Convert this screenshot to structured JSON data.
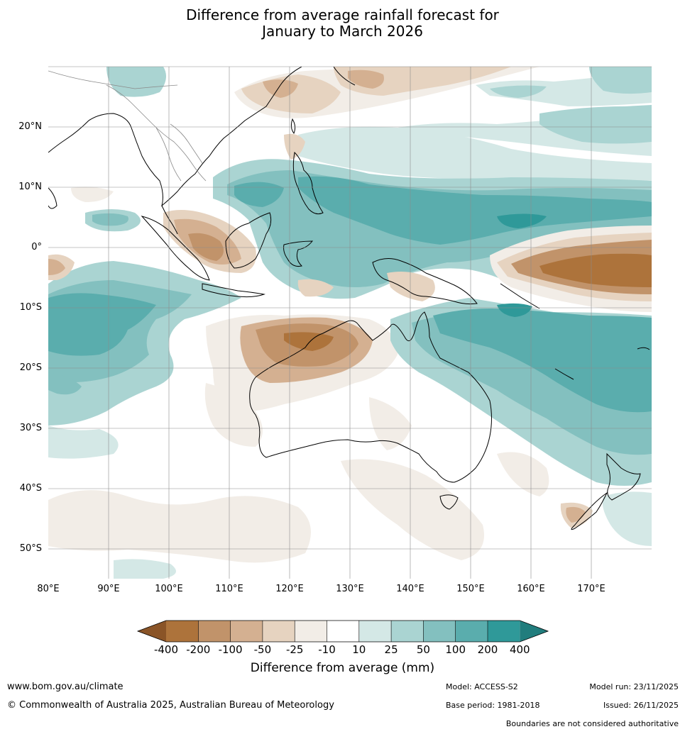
{
  "title": {
    "line1": "Difference from average rainfall forecast for",
    "line2": "January to March 2026"
  },
  "axes": {
    "lat_labels": [
      "20°N",
      "10°N",
      "0°",
      "10°S",
      "20°S",
      "30°S",
      "40°S",
      "50°S"
    ],
    "lat_values": [
      20,
      10,
      0,
      -10,
      -20,
      -30,
      -40,
      -50
    ],
    "lon_labels": [
      "80°E",
      "90°E",
      "100°E",
      "110°E",
      "120°E",
      "130°E",
      "140°E",
      "150°E",
      "160°E",
      "170°E"
    ],
    "lon_values": [
      80,
      90,
      100,
      110,
      120,
      130,
      140,
      150,
      160,
      170
    ],
    "lon_range": [
      80,
      180
    ],
    "lat_range": [
      -55,
      30
    ]
  },
  "colorbar": {
    "title": "Difference from average (mm)",
    "labels": [
      "-400",
      "-200",
      "-100",
      "-50",
      "-25",
      "-10",
      "10",
      "25",
      "50",
      "100",
      "200",
      "400"
    ],
    "colors": {
      "lt_-400": "#8a5427",
      "c1": "#ad733b",
      "c2": "#c1936a",
      "c3": "#d4b091",
      "c4": "#e6d3c0",
      "c5": "#f2ede7",
      "c6": "#ffffff",
      "c7": "#d4e8e6",
      "c8": "#aad4d2",
      "c9": "#83c0bf",
      "c10": "#5aadad",
      "c11": "#2f9999",
      "gt_400": "#217d7d"
    }
  },
  "footer": {
    "website": "www.bom.gov.au/climate",
    "copyright": "© Commonwealth of Australia 2025, Australian Bureau of Meteorology",
    "model": "Model: ACCESS-S2",
    "base_period": "Base period: 1981-2018",
    "model_run": "Model run: 23/11/2025",
    "issued": "Issued: 26/11/2025",
    "boundaries": "Boundaries are not considered authoritative"
  }
}
